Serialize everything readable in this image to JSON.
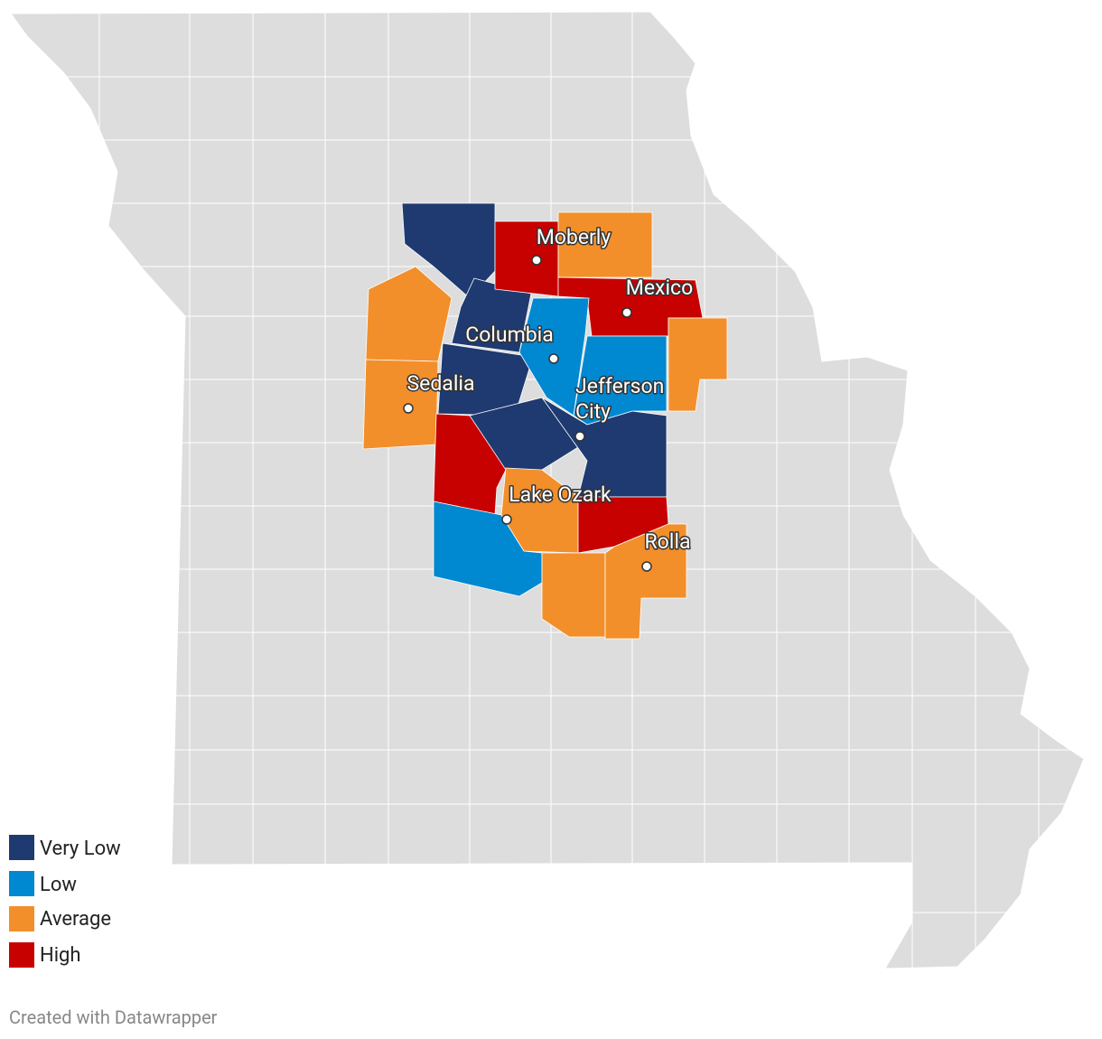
{
  "cities": [
    "Moberly",
    "Mexico",
    "Columbia",
    "Sedalia",
    [
      "Jefferson",
      "City"
    ],
    "Lake Ozark",
    "Rolla"
  ],
  "legend": {
    "items": [
      {
        "label": "Very Low",
        "color": "#1f3a70"
      },
      {
        "label": "Low",
        "color": "#0088d1"
      },
      {
        "label": "Average",
        "color": "#f28f2a"
      },
      {
        "label": "High",
        "color": "#c70000"
      }
    ]
  },
  "footer": "Created with Datawrapper"
}
